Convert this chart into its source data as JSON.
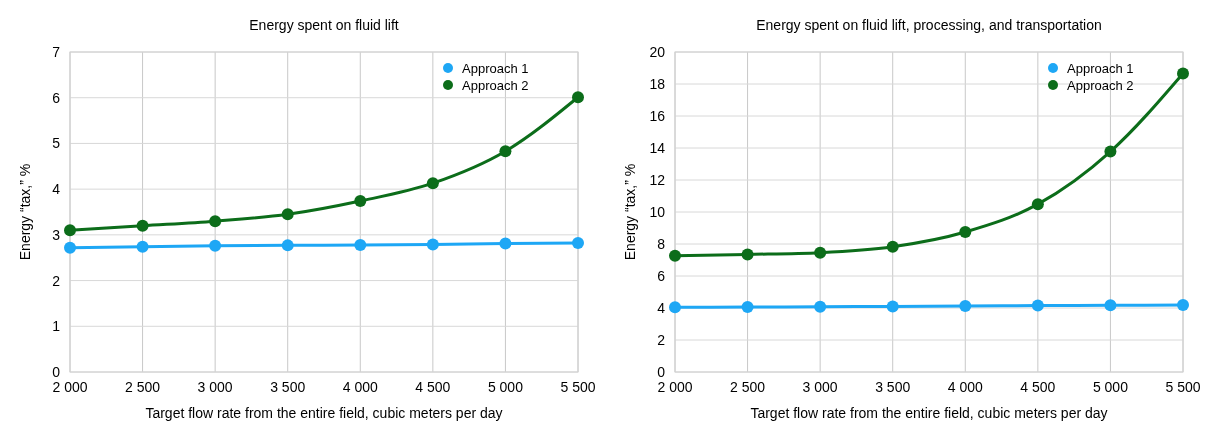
{
  "chart_data": [
    {
      "type": "line",
      "title": "Energy spent on fluid lift",
      "xlabel": "Target flow rate from the entire field, cubic meters per day",
      "ylabel": "Energy “tax,” %",
      "x": [
        2000,
        2500,
        3000,
        3500,
        4000,
        4500,
        5000,
        5500
      ],
      "series": [
        {
          "name": "Approach 1",
          "color": "#1ea7f5",
          "values": [
            2.72,
            2.74,
            2.76,
            2.77,
            2.78,
            2.79,
            2.81,
            2.82
          ]
        },
        {
          "name": "Approach 2",
          "color": "#0c6d1a",
          "values": [
            3.1,
            3.2,
            3.3,
            3.45,
            3.74,
            4.13,
            4.83,
            6.01
          ]
        }
      ],
      "xlim": [
        2000,
        5500
      ],
      "xticks": [
        {
          "value": 2000,
          "label": "2 000"
        },
        {
          "value": 2500,
          "label": "2 500"
        },
        {
          "value": 3000,
          "label": "3 000"
        },
        {
          "value": 3500,
          "label": "3 500"
        },
        {
          "value": 4000,
          "label": "4 000"
        },
        {
          "value": 4500,
          "label": "4 500"
        },
        {
          "value": 5000,
          "label": "5 000"
        },
        {
          "value": 5500,
          "label": "5 500"
        }
      ],
      "ylim": [
        0,
        7
      ],
      "yticks": [
        0,
        1,
        2,
        3,
        4,
        5,
        6,
        7
      ],
      "grid": true,
      "legend": "top right",
      "marker": "circle"
    },
    {
      "type": "line",
      "title": "Energy spent on fluid lift, processing, and transportation",
      "xlabel": "Target flow rate from the entire field, cubic meters per day",
      "ylabel": "Energy “tax,” %",
      "x": [
        2000,
        2500,
        3000,
        3500,
        4000,
        4500,
        5000,
        5500
      ],
      "series": [
        {
          "name": "Approach 1",
          "color": "#1ea7f5",
          "values": [
            4.04,
            4.06,
            4.08,
            4.1,
            4.12,
            4.15,
            4.17,
            4.19
          ]
        },
        {
          "name": "Approach 2",
          "color": "#0c6d1a",
          "values": [
            7.27,
            7.35,
            7.46,
            7.83,
            8.75,
            10.49,
            13.78,
            18.66
          ]
        }
      ],
      "xlim": [
        2000,
        5500
      ],
      "xticks": [
        {
          "value": 2000,
          "label": "2 000"
        },
        {
          "value": 2500,
          "label": "2 500"
        },
        {
          "value": 3000,
          "label": "3 000"
        },
        {
          "value": 3500,
          "label": "3 500"
        },
        {
          "value": 4000,
          "label": "4 000"
        },
        {
          "value": 4500,
          "label": "4 500"
        },
        {
          "value": 5000,
          "label": "5 000"
        },
        {
          "value": 5500,
          "label": "5 500"
        }
      ],
      "ylim": [
        0,
        20
      ],
      "yticks": [
        0,
        2,
        4,
        6,
        8,
        10,
        12,
        14,
        16,
        18,
        20
      ],
      "grid": true,
      "legend": "top right",
      "marker": "circle"
    }
  ]
}
